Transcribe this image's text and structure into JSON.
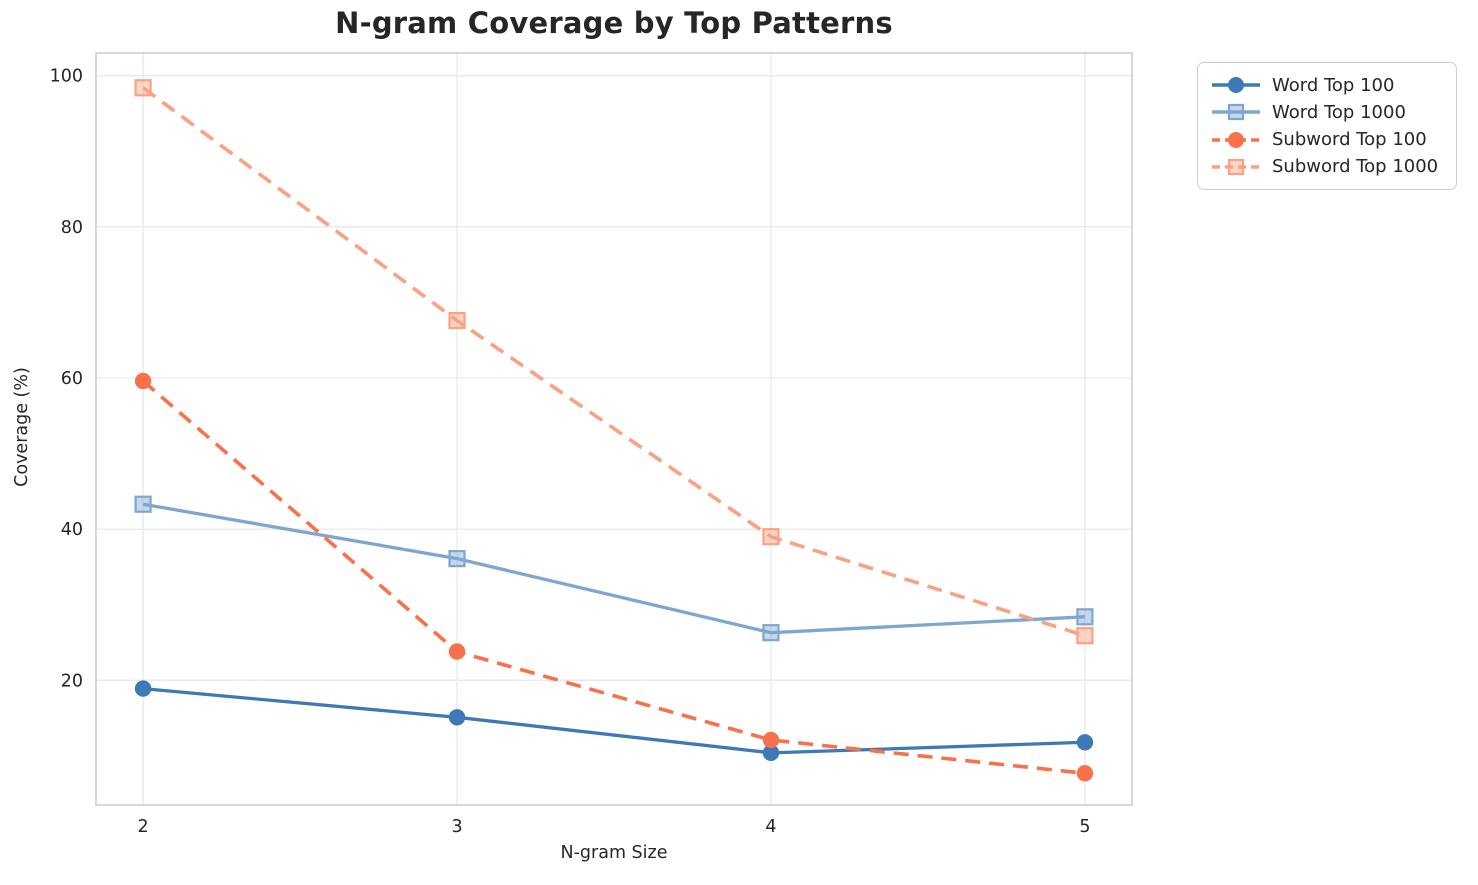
{
  "chart_data": {
    "type": "line",
    "title": "N-gram Coverage by Top Patterns",
    "xlabel": "N-gram Size",
    "ylabel": "Coverage (%)",
    "x": [
      2,
      3,
      4,
      5
    ],
    "xticks": [
      "2",
      "3",
      "4",
      "5"
    ],
    "yticks": [
      20,
      40,
      60,
      80,
      100
    ],
    "xlim": [
      1.85,
      5.15
    ],
    "ylim": [
      3.5,
      103
    ],
    "grid": true,
    "legend_position": "outside-top-right",
    "series": [
      {
        "name": "Word Top 100",
        "values": [
          18.9,
          15.1,
          10.4,
          11.8
        ],
        "color": "#3D7AB5",
        "dash": false,
        "marker": "circle"
      },
      {
        "name": "Word Top 1000",
        "values": [
          43.3,
          36.1,
          26.3,
          28.4
        ],
        "color": "#7EA6CF",
        "dash": false,
        "marker": "square"
      },
      {
        "name": "Subword Top 100",
        "values": [
          59.6,
          23.8,
          12.1,
          7.7
        ],
        "color": "#F9714B",
        "dash": true,
        "marker": "circle"
      },
      {
        "name": "Subword Top 1000",
        "values": [
          98.4,
          67.6,
          39.0,
          25.9
        ],
        "color": "#FBA183",
        "dash": true,
        "marker": "square"
      }
    ],
    "colors": {
      "grid": "#e9e9e9",
      "spine": "#cfcfcf",
      "text": "#262626",
      "background": "#ffffff"
    }
  }
}
